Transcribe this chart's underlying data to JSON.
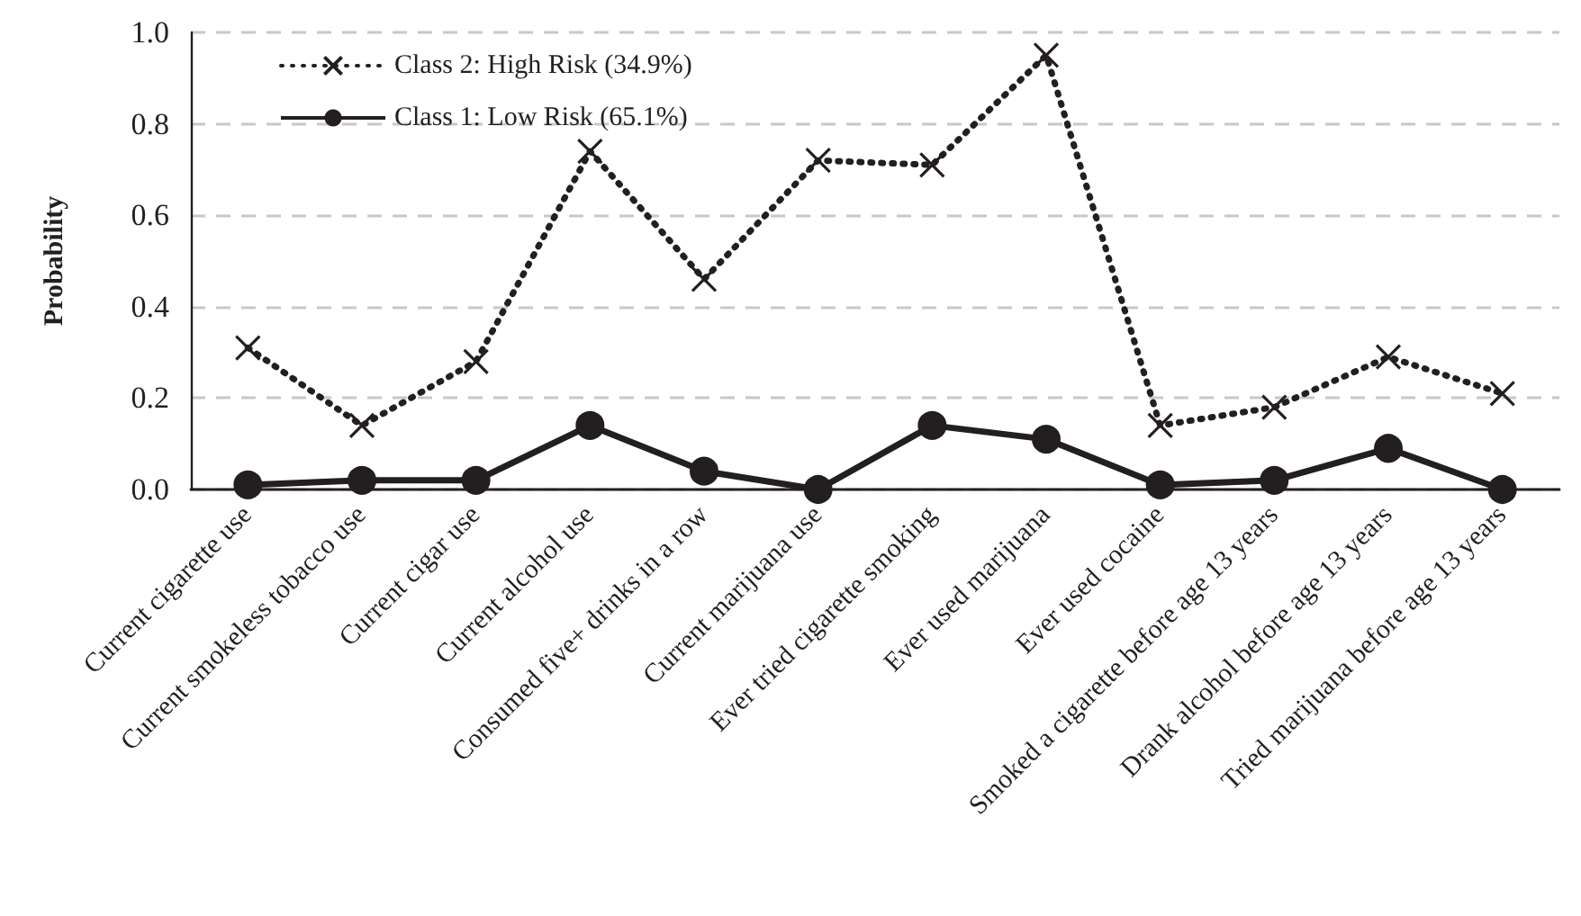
{
  "chart_data": {
    "type": "line",
    "ylabel": "Probability",
    "categories": [
      "Current cigarette use",
      "Current smokeless tobacco use",
      "Current cigar use",
      "Current alcohol use",
      "Consumed five+ drinks in a row",
      "Current marijuana use",
      "Ever tried cigarette smoking",
      "Ever used marijuana",
      "Ever used cocaine",
      "Smoked a cigarette before age 13 years",
      "Drank alcohol before age 13 years",
      "Tried marijuana before age 13 years"
    ],
    "series": [
      {
        "name": "Class 2: High Risk (34.9%)",
        "color": "#231f20",
        "marker": "cross",
        "line_style": "dotted",
        "values": [
          0.31,
          0.14,
          0.28,
          0.74,
          0.46,
          0.72,
          0.71,
          0.95,
          0.14,
          0.18,
          0.29,
          0.21
        ]
      },
      {
        "name": "Class 1: Low Risk (65.1%)",
        "color": "#231f20",
        "marker": "circle",
        "line_style": "solid",
        "values": [
          0.01,
          0.02,
          0.02,
          0.14,
          0.04,
          0.0,
          0.14,
          0.11,
          0.01,
          0.02,
          0.09,
          0.0
        ]
      }
    ],
    "ylim": [
      0,
      1
    ],
    "yticks": [
      {
        "value": 0,
        "label": "0.0"
      },
      {
        "value": 0.2,
        "label": "0.2"
      },
      {
        "value": 0.4,
        "label": "0.4"
      },
      {
        "value": 0.6,
        "label": "0.6"
      },
      {
        "value": 0.8,
        "label": "0.8"
      },
      {
        "value": 1,
        "label": "1.0"
      }
    ],
    "grid": "y",
    "legend": "top left"
  }
}
